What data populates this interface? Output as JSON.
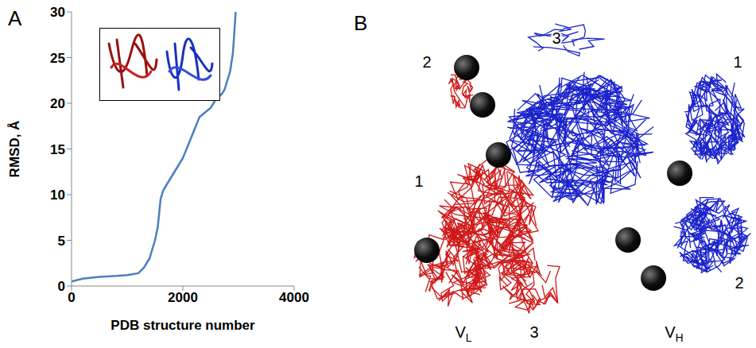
{
  "chart_data": {
    "type": "line",
    "x": [
      0,
      200,
      500,
      800,
      1000,
      1200,
      1300,
      1400,
      1450,
      1500,
      1550,
      1600,
      1650,
      1700,
      1800,
      1900,
      2000,
      2100,
      2200,
      2300,
      2400,
      2500,
      2600,
      2700,
      2750,
      2800,
      2850,
      2900,
      2950
    ],
    "values": [
      0.5,
      0.8,
      1.0,
      1.1,
      1.2,
      1.4,
      2.0,
      3.0,
      4.0,
      5.0,
      6.5,
      9.5,
      10.5,
      11.0,
      12.0,
      13.0,
      14.0,
      15.5,
      17.0,
      18.5,
      19.0,
      19.5,
      20.5,
      21.0,
      21.5,
      22.5,
      23.5,
      25.5,
      30.0
    ],
    "color": "#4a7fc0",
    "xlim": [
      0,
      4000
    ],
    "ylim": [
      0,
      30
    ],
    "xticks": [
      0,
      2000,
      4000
    ],
    "yticks": [
      0,
      5,
      10,
      15,
      20,
      25,
      30
    ],
    "xlabel": "PDB structure number",
    "ylabel": "RMSD, Å"
  },
  "panel_labels": [
    "A",
    "B"
  ],
  "panel_b": {
    "labels": [
      {
        "text": "3"
      },
      {
        "text": "2"
      },
      {
        "text": "1"
      },
      {
        "text": "1"
      },
      {
        "text": "2"
      },
      {
        "text": "3"
      },
      {
        "text": "V",
        "subscript": "L"
      },
      {
        "text": "V",
        "subscript": "H"
      }
    ]
  }
}
